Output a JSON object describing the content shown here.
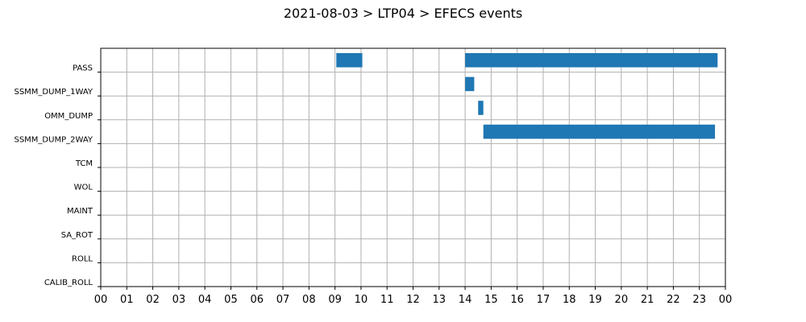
{
  "chart_data": {
    "type": "bar",
    "orientation": "horizontal-timeline",
    "title": "2021-08-03 > LTP04 > EFECS events",
    "xlabel": "",
    "ylabel": "",
    "categories": [
      "PASS",
      "SSMM_DUMP_1WAY",
      "OMM_DUMP",
      "SSMM_DUMP_2WAY",
      "TCM",
      "WOL",
      "MAINT",
      "SA_ROT",
      "ROLL",
      "CALIB_ROLL"
    ],
    "x_ticks": [
      "00",
      "01",
      "02",
      "03",
      "04",
      "05",
      "06",
      "07",
      "08",
      "09",
      "10",
      "11",
      "12",
      "13",
      "14",
      "15",
      "16",
      "17",
      "18",
      "19",
      "20",
      "21",
      "22",
      "23",
      "00"
    ],
    "xlim_hours": [
      0,
      24
    ],
    "grid": true,
    "bar_color": "#1f77b4",
    "events": [
      {
        "category": "PASS",
        "start_hour": 9.05,
        "end_hour": 10.05
      },
      {
        "category": "PASS",
        "start_hour": 14.0,
        "end_hour": 23.7
      },
      {
        "category": "SSMM_DUMP_1WAY",
        "start_hour": 14.0,
        "end_hour": 14.35
      },
      {
        "category": "OMM_DUMP",
        "start_hour": 14.5,
        "end_hour": 14.7
      },
      {
        "category": "SSMM_DUMP_2WAY",
        "start_hour": 14.7,
        "end_hour": 23.6
      }
    ]
  }
}
